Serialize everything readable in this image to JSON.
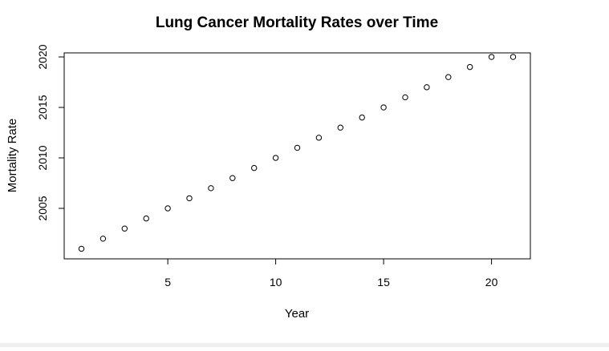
{
  "chart_data": {
    "type": "scatter",
    "title": "Lung Cancer Mortality Rates over Time",
    "xlabel": "Year",
    "ylabel": "Mortality Rate",
    "xlim": [
      0.2,
      21.8
    ],
    "ylim": [
      2000,
      2020.4
    ],
    "xticks": [
      5,
      10,
      15,
      20
    ],
    "yticks": [
      2005,
      2010,
      2015,
      2020
    ],
    "marker": "open-circle",
    "grid": false,
    "series": [
      {
        "x": [
          1,
          2,
          3,
          4,
          5,
          6,
          7,
          8,
          9,
          10,
          11,
          12,
          13,
          14,
          15,
          16,
          17,
          18,
          19,
          20,
          21
        ],
        "y": [
          2001,
          2002,
          2003,
          2004,
          2005,
          2006,
          2007,
          2008,
          2009,
          2010,
          2011,
          2012,
          2013,
          2014,
          2015,
          2016,
          2017,
          2018,
          2019,
          2020,
          2020
        ]
      }
    ]
  }
}
